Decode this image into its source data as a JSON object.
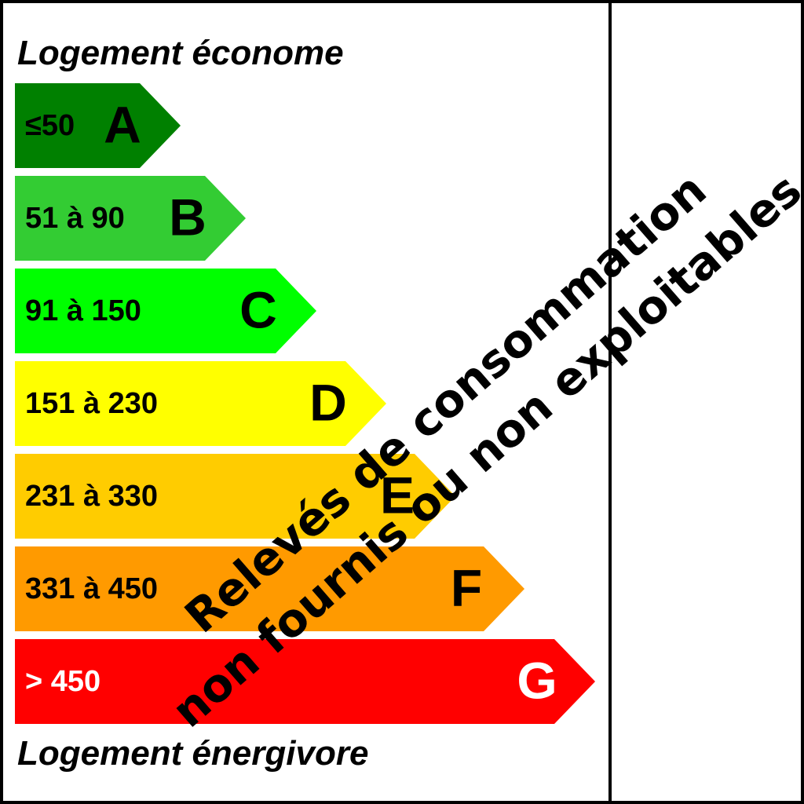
{
  "header": {
    "title": "Logement économe"
  },
  "classes": [
    {
      "range": "≤50",
      "letter": "A"
    },
    {
      "range": "51 à 90",
      "letter": "B"
    },
    {
      "range": "91 à 150",
      "letter": "C"
    },
    {
      "range": "151 à 230",
      "letter": "D"
    },
    {
      "range": "231 à 330",
      "letter": "E"
    },
    {
      "range": "331 à 450",
      "letter": "F"
    },
    {
      "range": "> 450",
      "letter": "G"
    }
  ],
  "footer": {
    "title": "Logement énergivore"
  },
  "overlay": {
    "lines": [
      "Relevés de consommation",
      "non fournis ou non exploitables"
    ]
  }
}
